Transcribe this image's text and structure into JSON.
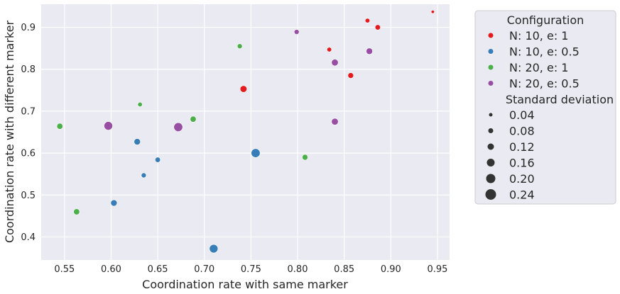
{
  "chart_data": {
    "type": "scatter",
    "xlabel": "Coordination rate with same marker",
    "ylabel": "Coordination rate with different marker",
    "xlim": [
      0.525,
      0.963
    ],
    "ylim": [
      0.345,
      0.955
    ],
    "x_ticks": [
      0.55,
      0.6,
      0.65,
      0.7,
      0.75,
      0.8,
      0.85,
      0.9,
      0.95
    ],
    "x_tick_labels": [
      "0.55",
      "0.60",
      "0.65",
      "0.70",
      "0.75",
      "0.80",
      "0.85",
      "0.90",
      "0.95"
    ],
    "y_ticks": [
      0.4,
      0.5,
      0.6,
      0.7,
      0.8,
      0.9
    ],
    "y_tick_labels": [
      "0.4",
      "0.5",
      "0.6",
      "0.7",
      "0.8",
      "0.9"
    ],
    "grid": true,
    "background_color": "#eaeaf2",
    "legend": {
      "placement": "outside-right",
      "hue_title": "Configuration",
      "size_title": "Standard deviation",
      "size_entries": [
        {
          "label": "0.04",
          "value": 0.04
        },
        {
          "label": "0.08",
          "value": 0.08
        },
        {
          "label": "0.12",
          "value": 0.12
        },
        {
          "label": "0.16",
          "value": 0.16
        },
        {
          "label": "0.20",
          "value": 0.2
        },
        {
          "label": "0.24",
          "value": 0.24
        }
      ]
    },
    "series": [
      {
        "name": "N: 10, e: 1",
        "color": "#e41a1c",
        "points": [
          {
            "x": 0.945,
            "y": 0.937,
            "sd": 0.03
          },
          {
            "x": 0.875,
            "y": 0.916,
            "sd": 0.07
          },
          {
            "x": 0.886,
            "y": 0.9,
            "sd": 0.09
          },
          {
            "x": 0.834,
            "y": 0.847,
            "sd": 0.07
          },
          {
            "x": 0.857,
            "y": 0.785,
            "sd": 0.1
          },
          {
            "x": 0.742,
            "y": 0.753,
            "sd": 0.13
          }
        ]
      },
      {
        "name": "N: 10, e: 0.5",
        "color": "#377eb8",
        "points": [
          {
            "x": 0.628,
            "y": 0.627,
            "sd": 0.12
          },
          {
            "x": 0.65,
            "y": 0.584,
            "sd": 0.09
          },
          {
            "x": 0.635,
            "y": 0.547,
            "sd": 0.08
          },
          {
            "x": 0.603,
            "y": 0.481,
            "sd": 0.12
          },
          {
            "x": 0.755,
            "y": 0.6,
            "sd": 0.19
          },
          {
            "x": 0.71,
            "y": 0.372,
            "sd": 0.18
          }
        ]
      },
      {
        "name": "N: 20, e: 1",
        "color": "#4daf4a",
        "points": [
          {
            "x": 0.545,
            "y": 0.664,
            "sd": 0.11
          },
          {
            "x": 0.563,
            "y": 0.46,
            "sd": 0.11
          },
          {
            "x": 0.631,
            "y": 0.716,
            "sd": 0.07
          },
          {
            "x": 0.688,
            "y": 0.681,
            "sd": 0.11
          },
          {
            "x": 0.738,
            "y": 0.855,
            "sd": 0.08
          },
          {
            "x": 0.808,
            "y": 0.59,
            "sd": 0.1
          }
        ]
      },
      {
        "name": "N: 20, e: 0.5",
        "color": "#984ea3",
        "points": [
          {
            "x": 0.597,
            "y": 0.665,
            "sd": 0.18
          },
          {
            "x": 0.672,
            "y": 0.662,
            "sd": 0.19
          },
          {
            "x": 0.799,
            "y": 0.889,
            "sd": 0.08
          },
          {
            "x": 0.84,
            "y": 0.816,
            "sd": 0.13
          },
          {
            "x": 0.877,
            "y": 0.843,
            "sd": 0.12
          },
          {
            "x": 0.84,
            "y": 0.675,
            "sd": 0.13
          }
        ]
      }
    ]
  }
}
